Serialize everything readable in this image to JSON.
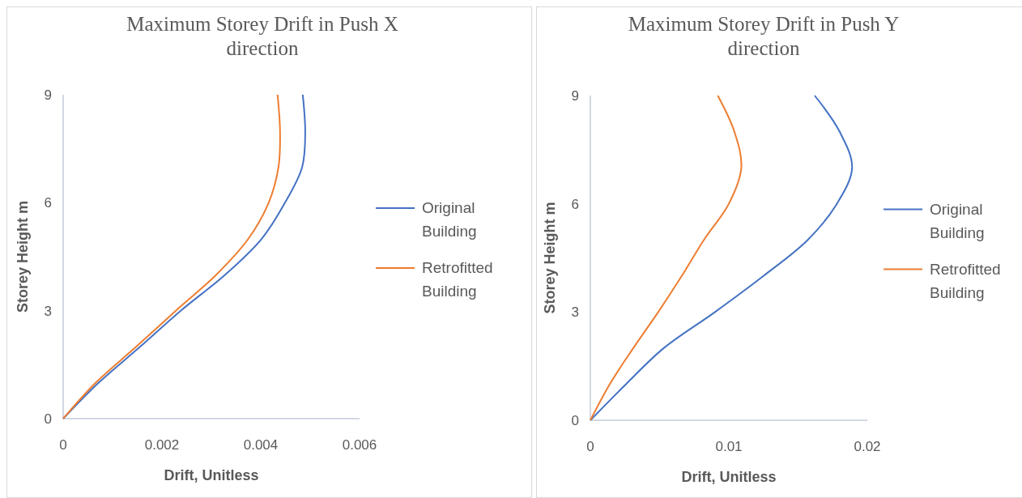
{
  "chart_data": [
    {
      "type": "line",
      "title": "Maximum Storey Drift in Push X direction",
      "xlabel": "Drift, Unitless",
      "ylabel": "Storey Height m",
      "xlim": [
        0,
        0.006
      ],
      "xticks": [
        0,
        0.002,
        0.004,
        0.006
      ],
      "ylim": [
        0,
        9
      ],
      "yticks": [
        0,
        3,
        6,
        9
      ],
      "legend": "right",
      "grid": false,
      "marker": "none",
      "series": [
        {
          "name": "Original Building",
          "color": "#4472c4",
          "x": [
            0,
            0.00072,
            0.00156,
            0.00238,
            0.00328,
            0.00402,
            0.00449,
            0.00484,
            0.0049,
            0.00485
          ],
          "values": [
            0,
            1,
            2,
            3,
            4,
            5,
            6,
            7,
            8,
            9
          ]
        },
        {
          "name": "Retrofitted Building",
          "color": "#ed7d31",
          "x": [
            0,
            0.00066,
            0.00148,
            0.00228,
            0.0031,
            0.00375,
            0.00416,
            0.00436,
            0.00439,
            0.00434
          ],
          "values": [
            0,
            1,
            2,
            3,
            4,
            5,
            6,
            7,
            8,
            9
          ]
        }
      ]
    },
    {
      "type": "line",
      "title": "Maximum Storey Drift in Push Y direction",
      "xlabel": "Drift, Unitless",
      "ylabel": "Storey Height m",
      "xlim": [
        0,
        0.02
      ],
      "xticks": [
        0,
        0.01,
        0.02
      ],
      "ylim": [
        0,
        9
      ],
      "yticks": [
        0,
        3,
        6,
        9
      ],
      "legend": "right",
      "grid": false,
      "marker": "none",
      "series": [
        {
          "name": "Original Building",
          "color": "#4472c4",
          "x": [
            0,
            0.00257,
            0.0053,
            0.009,
            0.0125,
            0.0157,
            0.0178,
            0.0189,
            0.018,
            0.0162
          ],
          "values": [
            0,
            1,
            2,
            3,
            4,
            5,
            6,
            7,
            8,
            9
          ]
        },
        {
          "name": "Retrofitted Building",
          "color": "#ed7d31",
          "x": [
            0,
            0.0014,
            0.0031,
            0.0049,
            0.0066,
            0.0082,
            0.01,
            0.0109,
            0.0104,
            0.0092
          ],
          "values": [
            0,
            1,
            2,
            3,
            4,
            5,
            6,
            7,
            8,
            9
          ]
        }
      ]
    }
  ]
}
